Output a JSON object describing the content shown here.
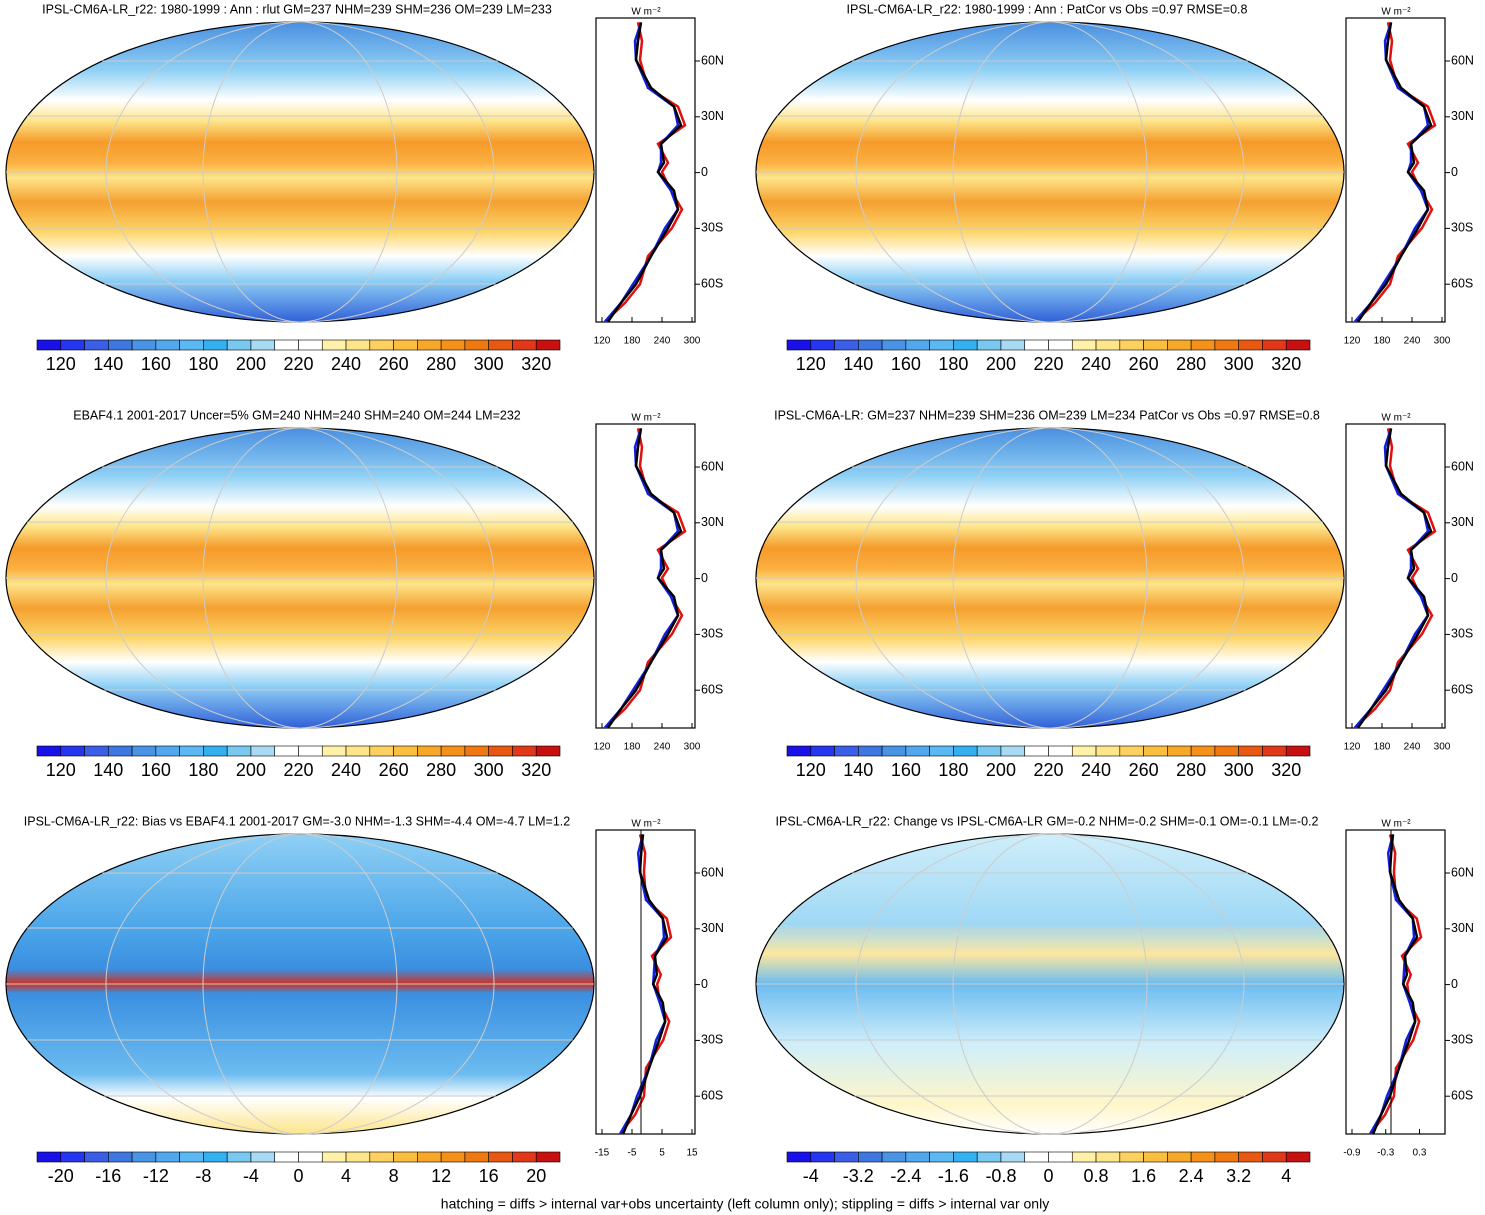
{
  "panels": [
    {
      "title": "IPSL-CM6A-LR_r22: 1980-1999 : Ann : rlut GM=237 NHM=239 SHM=236 OM=239 LM=233",
      "colorbar_labels": [
        "120",
        "140",
        "160",
        "180",
        "200",
        "220",
        "240",
        "260",
        "280",
        "300",
        "320"
      ],
      "profile": {
        "unit": "W m⁻²",
        "xticks": [
          "120",
          "180",
          "240",
          "300"
        ],
        "yticks": [
          "60N",
          "30N",
          "0",
          "30S",
          "60S"
        ]
      }
    },
    {
      "title": "IPSL-CM6A-LR_r22: 1980-1999 : Ann : PatCor vs Obs =0.97 RMSE=0.8",
      "colorbar_labels": [
        "120",
        "140",
        "160",
        "180",
        "200",
        "220",
        "240",
        "260",
        "280",
        "300",
        "320"
      ],
      "profile": {
        "unit": "W m⁻²",
        "xticks": [
          "120",
          "180",
          "240",
          "300"
        ],
        "yticks": [
          "60N",
          "30N",
          "0",
          "30S",
          "60S"
        ]
      }
    },
    {
      "title": "EBAF4.1 2001-2017 Uncer=5% GM=240 NHM=240 SHM=240 OM=244 LM=232",
      "colorbar_labels": [
        "120",
        "140",
        "160",
        "180",
        "200",
        "220",
        "240",
        "260",
        "280",
        "300",
        "320"
      ],
      "profile": {
        "unit": "W m⁻²",
        "xticks": [
          "120",
          "180",
          "240",
          "300"
        ],
        "yticks": [
          "60N",
          "30N",
          "0",
          "30S",
          "60S"
        ]
      }
    },
    {
      "title": "IPSL-CM6A-LR: GM=237 NHM=239 SHM=236 OM=239 LM=234 PatCor vs Obs =0.97 RMSE=0.8",
      "colorbar_labels": [
        "120",
        "140",
        "160",
        "180",
        "200",
        "220",
        "240",
        "260",
        "280",
        "300",
        "320"
      ],
      "profile": {
        "unit": "W m⁻²",
        "xticks": [
          "120",
          "180",
          "240",
          "300"
        ],
        "yticks": [
          "60N",
          "30N",
          "0",
          "30S",
          "60S"
        ]
      }
    },
    {
      "title": "IPSL-CM6A-LR_r22: Bias vs EBAF4.1 2001-2017 GM=-3.0 NHM=-1.3 SHM=-4.4 OM=-4.7 LM=1.2",
      "colorbar_labels": [
        "-20",
        "-16",
        "-12",
        "-8",
        "-4",
        "0",
        "4",
        "8",
        "12",
        "16",
        "20"
      ],
      "profile": {
        "unit": "W m⁻²",
        "xticks": [
          "-15",
          "-5",
          "5",
          "15"
        ],
        "yticks": [
          "60N",
          "30N",
          "0",
          "30S",
          "60S"
        ]
      }
    },
    {
      "title": "IPSL-CM6A-LR_r22: Change vs IPSL-CM6A-LR GM=-0.2 NHM=-0.2 SHM=-0.1 OM=-0.1 LM=-0.2",
      "colorbar_labels": [
        "-4",
        "-3.2",
        "-2.4",
        "-1.6",
        "-0.8",
        "0",
        "0.8",
        "1.6",
        "2.4",
        "3.2",
        "4"
      ],
      "profile": {
        "unit": "W m⁻²",
        "xticks": [
          "-0.9",
          "-0.3",
          "0.3"
        ],
        "yticks": [
          "60N",
          "30N",
          "0",
          "30S",
          "60S"
        ]
      }
    }
  ],
  "footer": "hatching = diffs > internal var+obs uncertainty (left column only); stippling = diffs > internal var only"
}
